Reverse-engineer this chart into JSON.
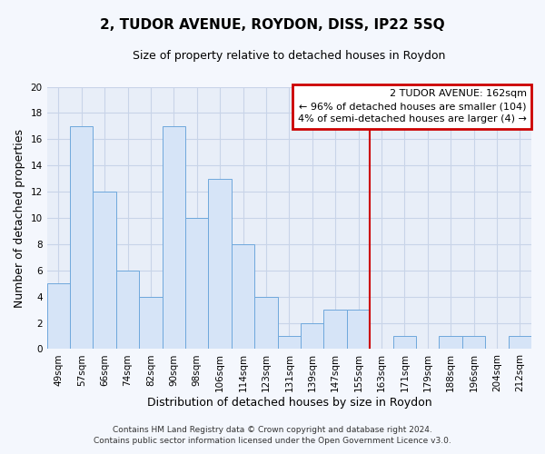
{
  "title": "2, TUDOR AVENUE, ROYDON, DISS, IP22 5SQ",
  "subtitle": "Size of property relative to detached houses in Roydon",
  "xlabel": "Distribution of detached houses by size in Roydon",
  "ylabel": "Number of detached properties",
  "bar_labels": [
    "49sqm",
    "57sqm",
    "66sqm",
    "74sqm",
    "82sqm",
    "90sqm",
    "98sqm",
    "106sqm",
    "114sqm",
    "123sqm",
    "131sqm",
    "139sqm",
    "147sqm",
    "155sqm",
    "163sqm",
    "171sqm",
    "179sqm",
    "188sqm",
    "196sqm",
    "204sqm",
    "212sqm"
  ],
  "bar_values": [
    5,
    17,
    12,
    6,
    4,
    17,
    10,
    13,
    8,
    4,
    1,
    2,
    3,
    3,
    0,
    1,
    0,
    1,
    1,
    0,
    1
  ],
  "bar_color": "#d6e4f7",
  "bar_edge_color": "#6fa8dc",
  "vline_color": "#cc0000",
  "vline_bar_index": 14,
  "annotation_title": "2 TUDOR AVENUE: 162sqm",
  "annotation_line1": "← 96% of detached houses are smaller (104)",
  "annotation_line2": "4% of semi-detached houses are larger (4) →",
  "annotation_box_edge": "#cc0000",
  "ylim": [
    0,
    20
  ],
  "yticks": [
    0,
    2,
    4,
    6,
    8,
    10,
    12,
    14,
    16,
    18,
    20
  ],
  "footer_line1": "Contains HM Land Registry data © Crown copyright and database right 2024.",
  "footer_line2": "Contains public sector information licensed under the Open Government Licence v3.0.",
  "plot_bg_color": "#e8eef8",
  "fig_bg_color": "#f4f7fd",
  "grid_color": "#c8d4e8",
  "title_fontsize": 11,
  "subtitle_fontsize": 9,
  "axis_label_fontsize": 9,
  "tick_fontsize": 7.5
}
